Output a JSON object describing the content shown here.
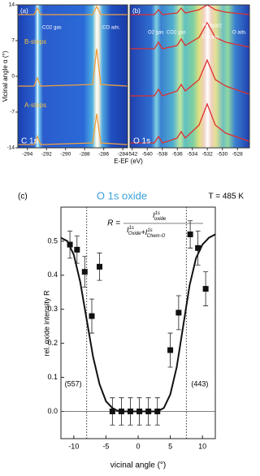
{
  "chart_data": [
    {
      "type": "heatmap",
      "panel_label": "(a)",
      "core_label": "C 1s",
      "ylabel": "Vicinal angle α (°)",
      "xlabel": "E-EF (eV)",
      "xlim": [
        -295,
        -283.5
      ],
      "xticks": [
        -294,
        -292,
        -290,
        -288,
        -286,
        -284
      ],
      "ylim": [
        -14,
        14
      ],
      "yticks": [
        14,
        7,
        0,
        -7,
        -14
      ],
      "annotations": [
        "CO2 gas",
        "CO ads.",
        "B-steps",
        "A-steps"
      ]
    },
    {
      "type": "heatmap",
      "panel_label": "(b)",
      "core_label": "O 1s",
      "xlim": [
        -542.3,
        -526.4
      ],
      "xticks": [
        -542,
        -540,
        -538,
        -536,
        -534,
        -532,
        -530,
        -528
      ],
      "annotations": [
        "O2 gas",
        "CO2 gas",
        "Pd 3p3/2",
        "CO ads.",
        "O ads."
      ]
    },
    {
      "type": "scatter",
      "panel_label": "(c)",
      "title": "O 1s oxide",
      "temperature": "T = 485 K",
      "formula": {
        "lhs": "R =",
        "numerator": [
          {
            "t": "I",
            "sup": "1s",
            "sub": "oxide"
          }
        ],
        "denominator": [
          {
            "t": "I",
            "sup": "1s",
            "sub": "Oxide"
          },
          {
            "t": "+I",
            "sup": "1s",
            "sub": "Chem-O"
          }
        ]
      },
      "xlabel": "vicinal angle (°)",
      "ylabel": "rel. oxide intensity R",
      "xlim": [
        -12,
        12
      ],
      "ylim": [
        -0.08,
        0.6
      ],
      "xticks": [
        -10,
        -5,
        0,
        5,
        10
      ],
      "yticks": [
        0.0,
        0.1,
        0.2,
        0.3,
        0.4,
        0.5
      ],
      "yticklabels": [
        "0.0",
        "0.1",
        "0.2",
        "0.3",
        "0.4",
        "0.5"
      ],
      "x": [
        -10.6,
        -9.5,
        -8.3,
        -7.2,
        -6.0,
        -4.0,
        -2.6,
        -1.2,
        0.2,
        1.6,
        3.0,
        5.0,
        6.3,
        8.1,
        9.3,
        10.5
      ],
      "values": [
        0.49,
        0.475,
        0.41,
        0.28,
        0.425,
        0,
        0,
        0,
        0,
        0,
        0,
        0.18,
        0.29,
        0.52,
        0.48,
        0.36
      ],
      "errors": [
        0.04,
        0.04,
        0.045,
        0.05,
        0.04,
        0.04,
        0.04,
        0.04,
        0.04,
        0.04,
        0.04,
        0.05,
        0.05,
        0.04,
        0.05,
        0.05
      ],
      "fit": {
        "x": [
          -12,
          -11,
          -10,
          -9,
          -8,
          -7,
          -6,
          -5,
          -4,
          -3,
          -2,
          -1,
          0,
          1,
          2,
          3,
          4,
          5,
          6,
          7,
          8,
          9,
          10,
          11,
          12
        ],
        "values": [
          0.51,
          0.5,
          0.46,
          0.38,
          0.27,
          0.16,
          0.08,
          0.03,
          0.01,
          0,
          0,
          0,
          0,
          0,
          0,
          0,
          0.01,
          0.05,
          0.13,
          0.25,
          0.37,
          0.45,
          0.49,
          0.51,
          0.52
        ]
      },
      "reference_lines": [
        {
          "x": -8,
          "label": "(557)"
        },
        {
          "x": 7.5,
          "label": "(443)"
        }
      ]
    }
  ]
}
